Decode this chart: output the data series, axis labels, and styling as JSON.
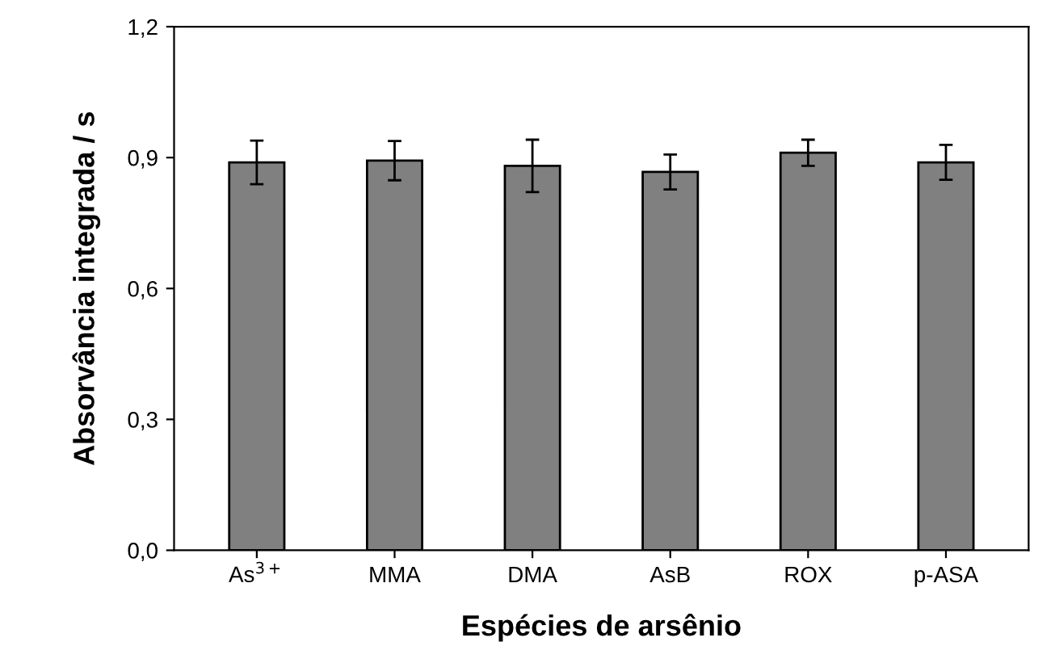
{
  "chart_data": {
    "type": "bar",
    "xlabel": "Espécies de arsênio",
    "ylabel": "Absorvância integrada / s",
    "categories": [
      "As$^{3+}$",
      "MMA",
      "DMA",
      "AsB",
      "ROX",
      "p-ASA"
    ],
    "values": [
      0.889,
      0.893,
      0.881,
      0.867,
      0.911,
      0.889
    ],
    "errors": [
      0.05,
      0.045,
      0.06,
      0.04,
      0.03,
      0.04
    ],
    "color": "#808080",
    "ylim": [
      0,
      1.2
    ],
    "yticks": [
      {
        "value": 0,
        "label": "0,0"
      },
      {
        "value": 0.3,
        "label": "0,3"
      },
      {
        "value": 0.6,
        "label": "0,6"
      },
      {
        "value": 0.9,
        "label": "0,9"
      },
      {
        "value": 1.2,
        "label": "1,2"
      }
    ],
    "grid": false,
    "legend": false
  }
}
